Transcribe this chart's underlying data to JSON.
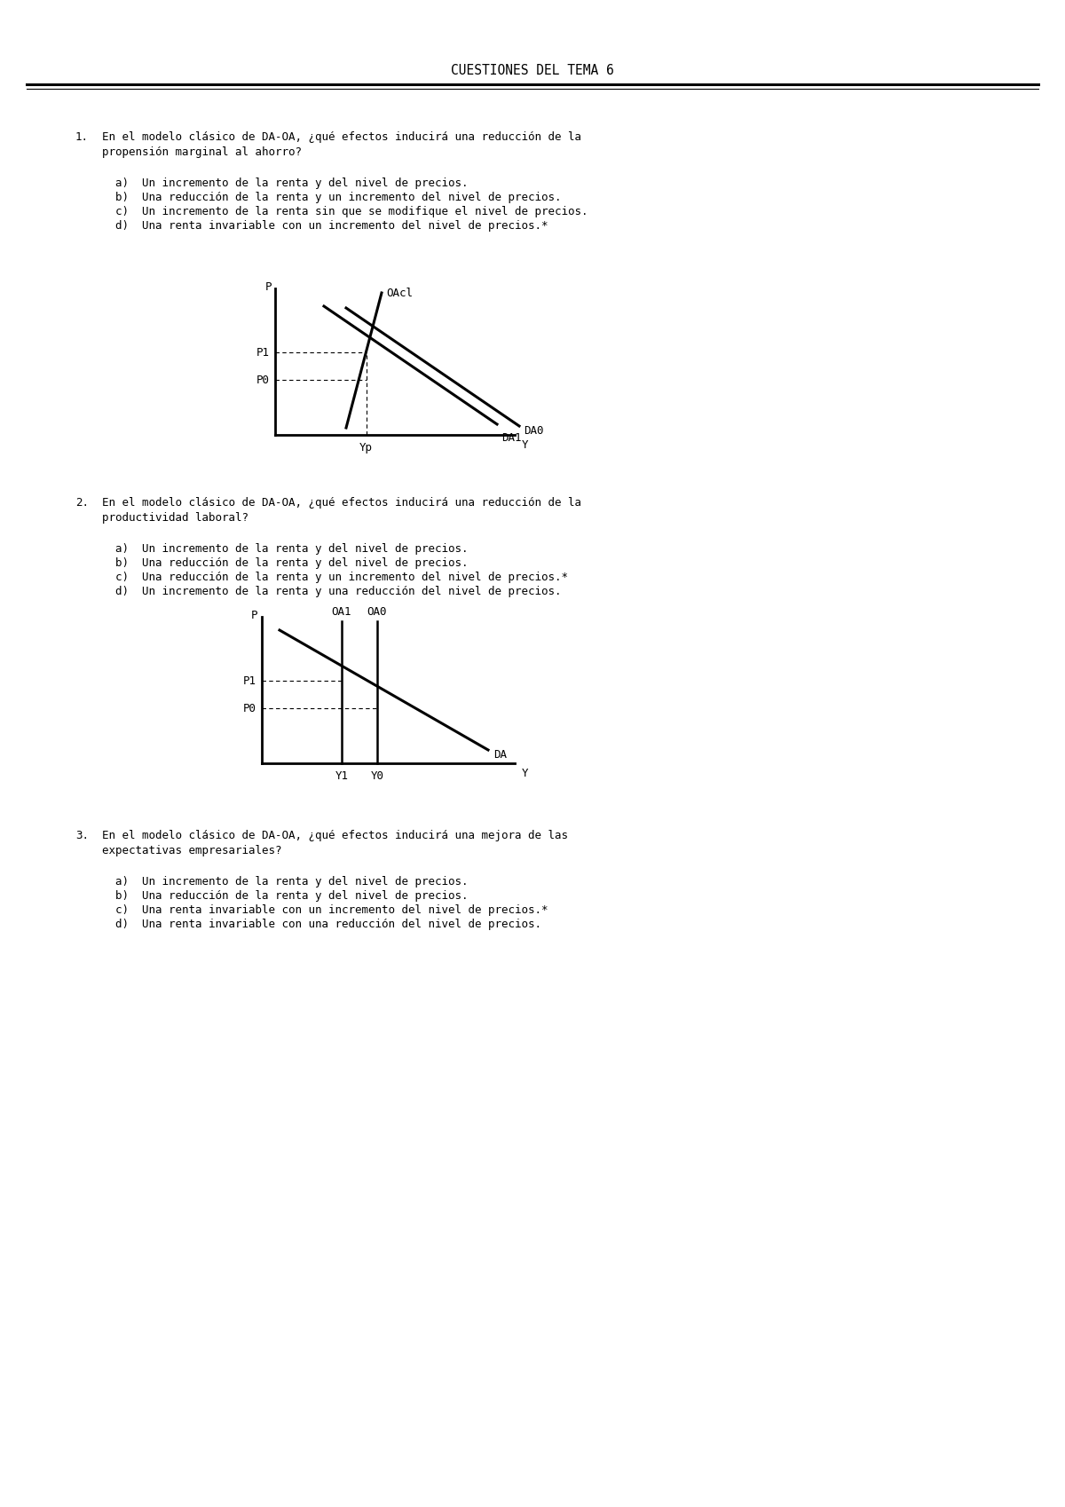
{
  "title": "CUESTIONES DEL TEMA 6",
  "background_color": "#ffffff",
  "text_color": "#000000",
  "title_fontsize": 10.5,
  "body_fontsize": 9.0,
  "q1": {
    "number": "1.",
    "question_line1": "En el modelo clásico de DA-OA, ¿qué efectos inducirá una reducción de la",
    "question_line2": "propensión marginal al ahorro?",
    "options": [
      "a)  Un incremento de la renta y del nivel de precios.",
      "b)  Una reducción de la renta y un incremento del nivel de precios.",
      "c)  Un incremento de la renta sin que se modifique el nivel de precios.",
      "d)  Una renta invariable con un incremento del nivel de precios.*"
    ]
  },
  "q2": {
    "number": "2.",
    "question_line1": "En el modelo clásico de DA-OA, ¿qué efectos inducirá una reducción de la",
    "question_line2": "productividad laboral?",
    "options": [
      "a)  Un incremento de la renta y del nivel de precios.",
      "b)  Una reducción de la renta y del nivel de precios.",
      "c)  Una reducción de la renta y un incremento del nivel de precios.*",
      "d)  Un incremento de la renta y una reducción del nivel de precios."
    ]
  },
  "q3": {
    "number": "3.",
    "question_line1": "En el modelo clásico de DA-OA, ¿qué efectos inducirá una mejora de las",
    "question_line2": "expectativas empresariales?",
    "options": [
      "a)  Un incremento de la renta y del nivel de precios.",
      "b)  Una reducción de la renta y del nivel de precios.",
      "c)  Una renta invariable con un incremento del nivel de precios.*",
      "d)  Una renta invariable con una reducción del nivel de precios."
    ]
  }
}
